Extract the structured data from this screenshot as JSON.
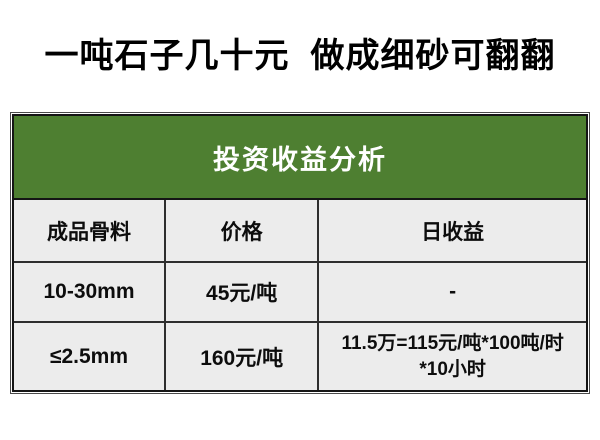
{
  "title": "一吨石子几十元  做成细砂可翻翻",
  "colors": {
    "banner_green": "#4e7f31",
    "cell_gray": "#ececec",
    "border_dark": "#2e2e2e",
    "outer_dark": "#151515",
    "title_black": "#000000",
    "banner_text": "#ffffff"
  },
  "table": {
    "banner": "投资收益分析",
    "columns": [
      "成品骨料",
      "价格",
      "日收益"
    ],
    "rows": [
      {
        "aggregate": "10-30mm",
        "price": "45元/吨",
        "daily_income": "-"
      },
      {
        "aggregate": "≤2.5mm",
        "price": "160元/吨",
        "daily_income": "11.5万=115元/吨*100吨/时\n*10小时"
      }
    ]
  }
}
